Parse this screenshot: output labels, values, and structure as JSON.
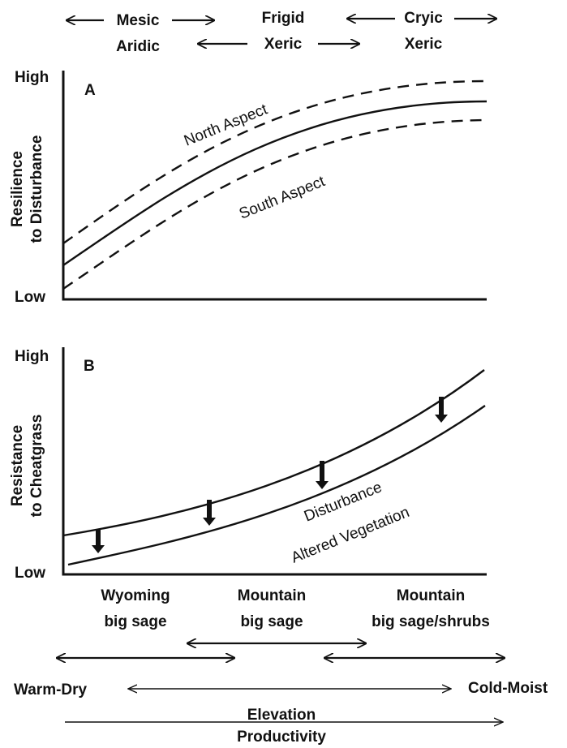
{
  "top_labels": {
    "col1": [
      "Mesic",
      "Aridic"
    ],
    "col2": [
      "Frigid",
      "Xeric"
    ],
    "col3": [
      "Cryic",
      "Xeric"
    ]
  },
  "panel_a": {
    "letter": "A",
    "y_label_line1": "Resilience",
    "y_label_line2": "to Disturbance",
    "y_high": "High",
    "y_low": "Low",
    "curve_north_label": "North Aspect",
    "curve_south_label": "South Aspect"
  },
  "panel_b": {
    "letter": "B",
    "y_label_line1": "Resistance",
    "y_label_line2": "to Cheatgrass",
    "y_high": "High",
    "y_low": "Low",
    "label_disturbance": "Disturbance",
    "label_altered": "Altered Vegetation"
  },
  "vegetation": {
    "v1": [
      "Wyoming",
      "big sage"
    ],
    "v2": [
      "Mountain",
      "big sage"
    ],
    "v3": [
      "Mountain",
      "big sage/shrubs"
    ]
  },
  "gradient": {
    "left": "Warm-Dry",
    "right": "Cold-Moist",
    "elevation": "Elevation",
    "productivity": "Productivity"
  }
}
